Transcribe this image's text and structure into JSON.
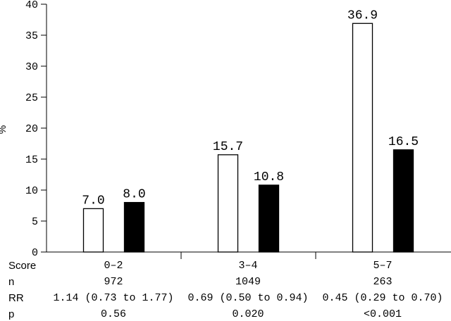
{
  "chart_data": {
    "type": "bar",
    "ylabel": "%",
    "ylim": [
      0,
      40
    ],
    "yticks": [
      0,
      5,
      10,
      15,
      20,
      25,
      30,
      35,
      40
    ],
    "categories": [
      "0–2",
      "3–4",
      "5–7"
    ],
    "series": [
      {
        "values": [
          7.0,
          15.7,
          36.9
        ],
        "value_labels": [
          "7.0",
          "15.7",
          "36.9"
        ],
        "fill": "#ffffff"
      },
      {
        "values": [
          8.0,
          10.8,
          16.5
        ],
        "value_labels": [
          "8.0",
          "10.8",
          "16.5"
        ],
        "fill": "#000000"
      }
    ],
    "grid": false,
    "legend": "none"
  },
  "table": {
    "row_labels": {
      "score": "Score",
      "n": "n",
      "rr": "RR",
      "p": "p"
    },
    "n": [
      "972",
      "1049",
      "263"
    ],
    "rr": [
      "1.14 (0.73 to 1.77)",
      "0.69 (0.50 to 0.94)",
      "0.45 (0.29 to 0.70)"
    ],
    "p": [
      "0.56",
      "0.020",
      "<0.001"
    ]
  }
}
